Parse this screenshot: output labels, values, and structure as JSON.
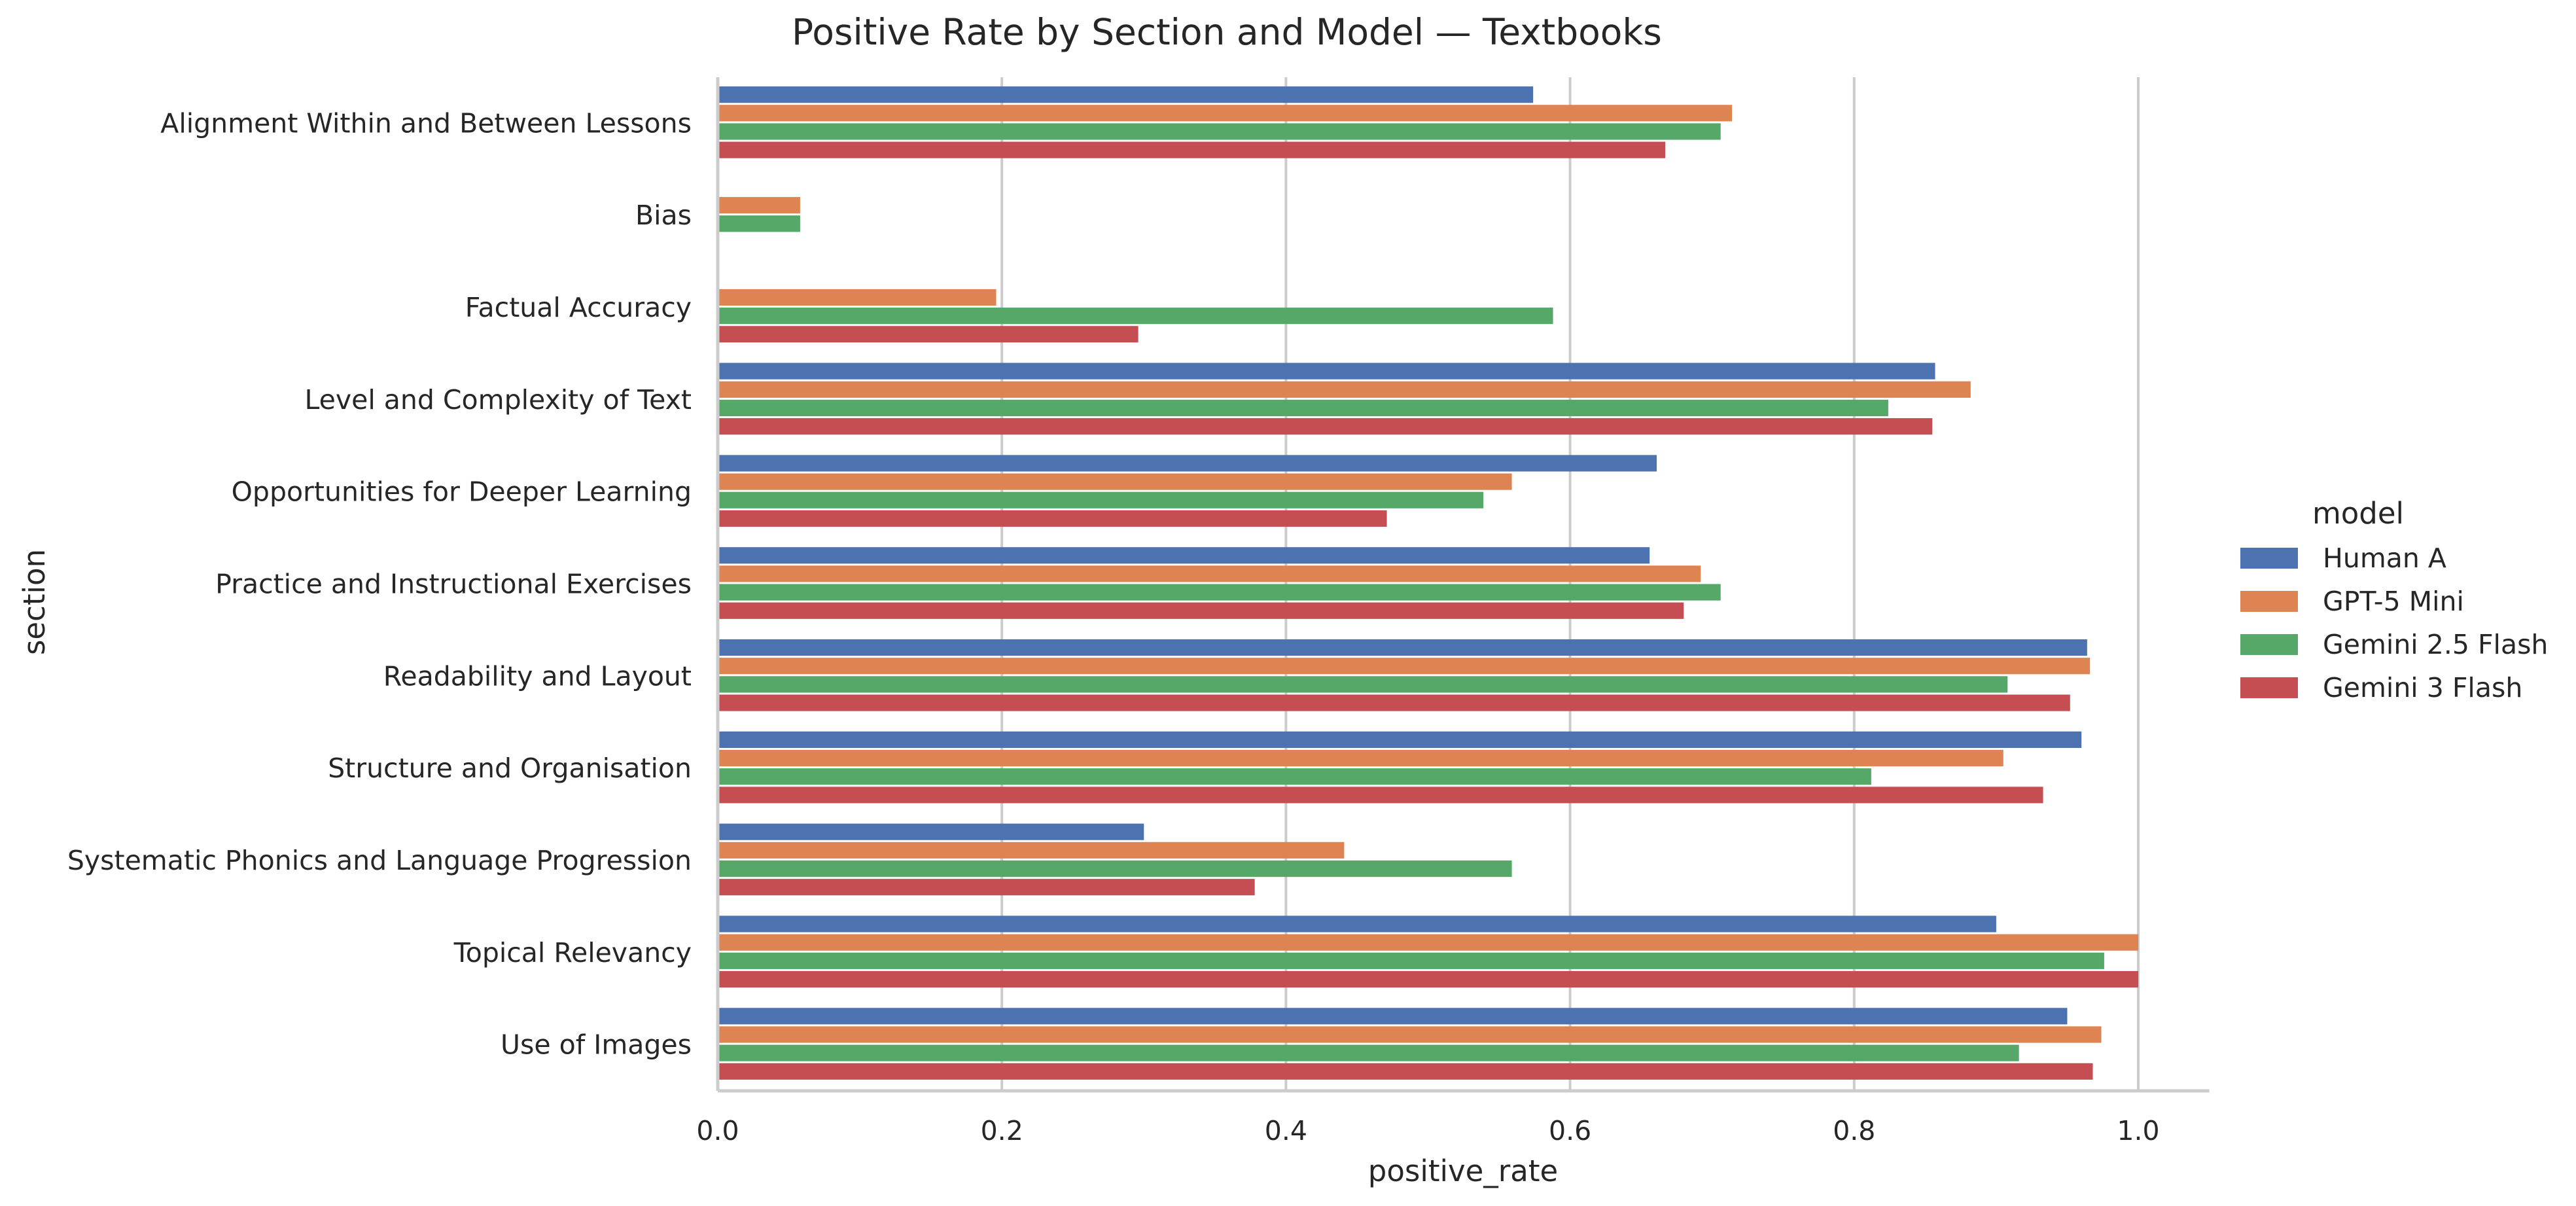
{
  "chart_data": {
    "type": "bar",
    "orientation": "horizontal",
    "title": "Positive Rate by Section and Model — Textbooks",
    "xlabel": "positive_rate",
    "ylabel": "section",
    "xlim": [
      0,
      1.05
    ],
    "xticks": [
      0.0,
      0.2,
      0.4,
      0.6,
      0.8,
      1.0
    ],
    "xtick_labels": [
      "0.0",
      "0.2",
      "0.4",
      "0.6",
      "0.8",
      "1.0"
    ],
    "grid": "vertical",
    "legend": {
      "title": "model",
      "placement": "right"
    },
    "categories": [
      "Alignment Within and Between Lessons",
      "Bias",
      "Factual Accuracy",
      "Level and Complexity of Text",
      "Opportunities for Deeper Learning",
      "Practice and Instructional Exercises",
      "Readability and Layout",
      "Structure and Organisation",
      "Systematic Phonics and Language Progression",
      "Topical Relevancy",
      "Use of Images"
    ],
    "series": [
      {
        "name": "Human A",
        "color": "#4c72b0",
        "values": [
          0.574,
          null,
          null,
          0.857,
          0.661,
          0.656,
          0.964,
          0.96,
          0.3,
          0.9,
          0.95
        ]
      },
      {
        "name": "GPT-5 Mini",
        "color": "#dd8452",
        "values": [
          0.714,
          0.058,
          0.196,
          0.882,
          0.559,
          0.692,
          0.966,
          0.905,
          0.441,
          1.0,
          0.974
        ]
      },
      {
        "name": "Gemini 2.5 Flash",
        "color": "#55a868",
        "values": [
          0.706,
          0.058,
          0.588,
          0.824,
          0.539,
          0.706,
          0.908,
          0.812,
          0.559,
          0.976,
          0.916
        ]
      },
      {
        "name": "Gemini 3 Flash",
        "color": "#c44e52",
        "values": [
          0.667,
          null,
          0.296,
          0.855,
          0.471,
          0.68,
          0.952,
          0.933,
          0.378,
          1.0,
          0.968
        ]
      }
    ]
  }
}
